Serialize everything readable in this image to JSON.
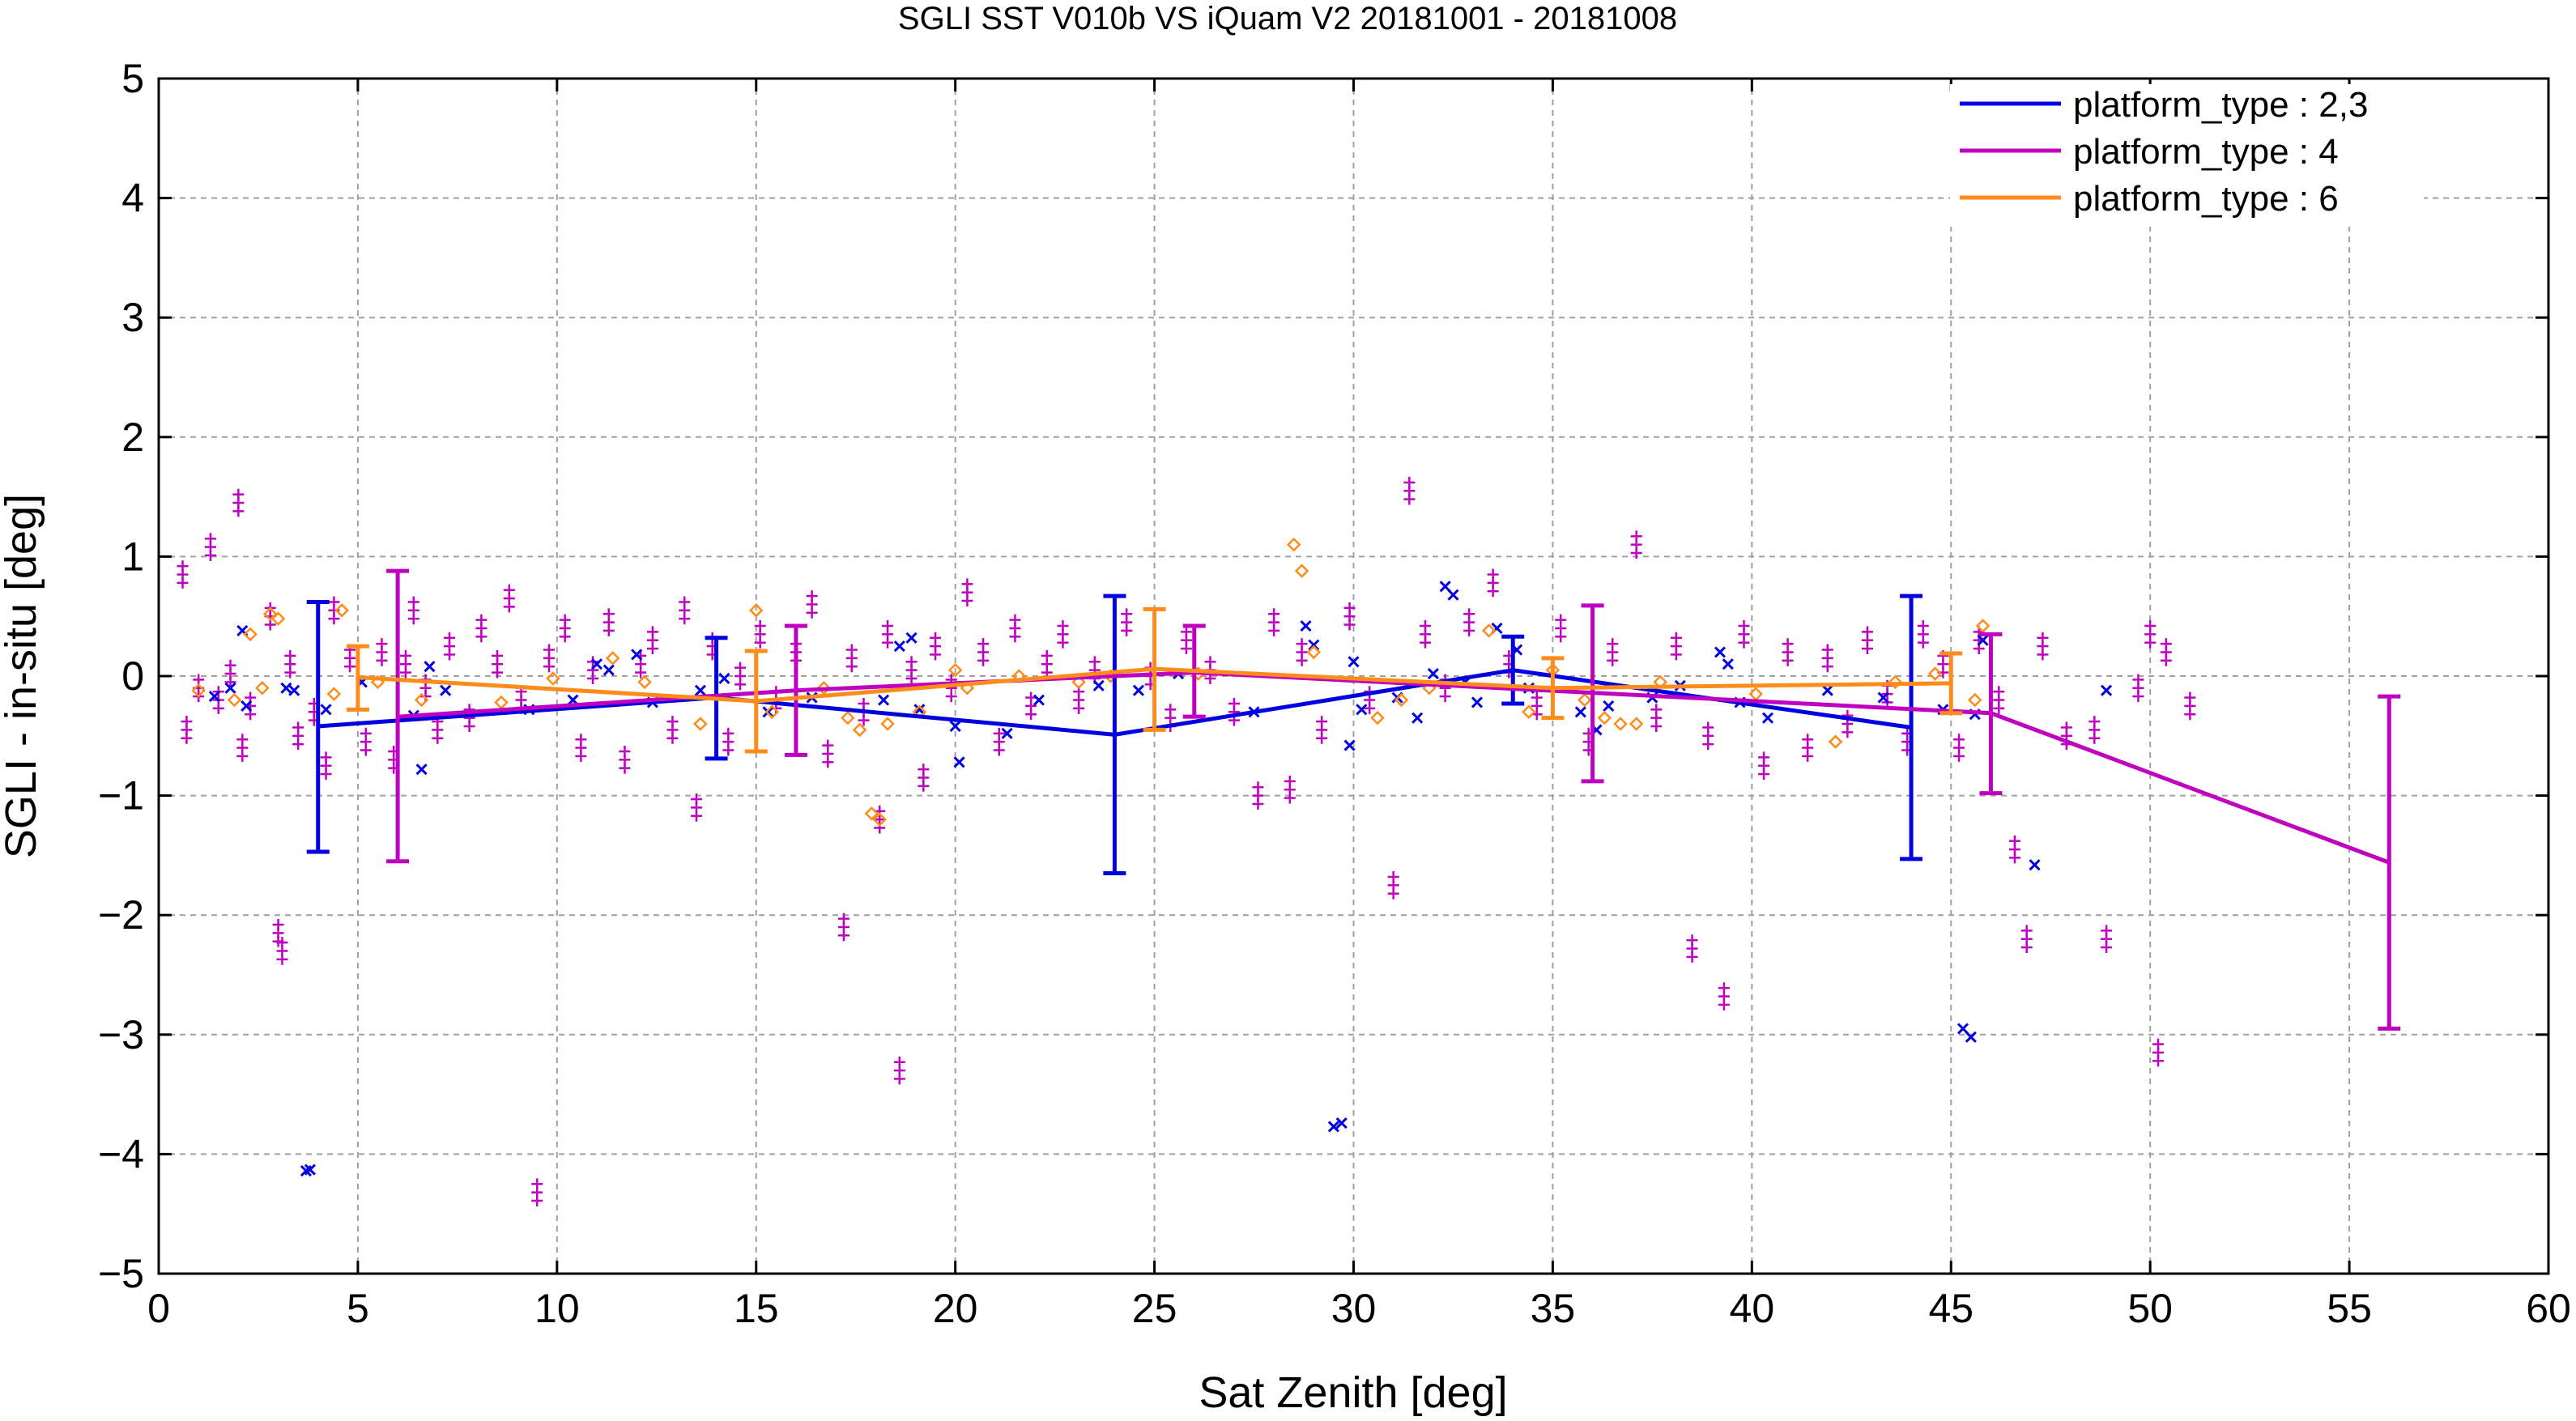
{
  "chart_data": {
    "type": "line",
    "title": "SGLI SST V010b VS iQuam V2 20181001 - 20181008",
    "xlabel": "Sat Zenith [deg]",
    "ylabel": "SGLI - in-situ [deg]",
    "xlim": [
      0,
      60
    ],
    "ylim": [
      -5,
      5
    ],
    "xticks": [
      0,
      5,
      10,
      15,
      20,
      25,
      30,
      35,
      40,
      45,
      50,
      55,
      60
    ],
    "yticks": [
      -5,
      -4,
      -3,
      -2,
      -1,
      0,
      1,
      2,
      3,
      4,
      5
    ],
    "grid": true,
    "legend_position": "top-right",
    "series": [
      {
        "name": "platform_type : 2,3",
        "color": "#0000e0",
        "marker": "x",
        "x": [
          4,
          14,
          24,
          34,
          44
        ],
        "mean": [
          -0.42,
          -0.18,
          -0.49,
          0.05,
          -0.43
        ],
        "err_low": [
          -1.47,
          -0.69,
          -1.65,
          -0.23,
          -1.53
        ],
        "err_high": [
          0.62,
          0.32,
          0.67,
          0.33,
          0.67
        ]
      },
      {
        "name": "platform_type : 4",
        "color": "#c000c0",
        "marker": "+",
        "x": [
          6,
          16,
          26,
          36,
          46,
          56
        ],
        "mean": [
          -0.34,
          -0.12,
          0.03,
          -0.14,
          -0.31,
          -1.56
        ],
        "err_low": [
          -1.55,
          -0.66,
          -0.34,
          -0.88,
          -0.98,
          -2.95
        ],
        "err_high": [
          0.88,
          0.42,
          0.42,
          0.59,
          0.35,
          -0.17
        ]
      },
      {
        "name": "platform_type : 6",
        "color": "#ff8c1a",
        "marker": "diamond",
        "x": [
          5,
          15,
          25,
          35,
          45
        ],
        "mean": [
          -0.01,
          -0.21,
          0.06,
          -0.1,
          -0.06
        ],
        "err_low": [
          -0.28,
          -0.63,
          -0.45,
          -0.35,
          -0.31
        ],
        "err_high": [
          0.25,
          0.21,
          0.56,
          0.15,
          0.19
        ]
      }
    ],
    "scatter": {
      "platform_type_2_3": [
        [
          1.4,
          -0.17
        ],
        [
          1.8,
          -0.1
        ],
        [
          2.1,
          0.38
        ],
        [
          2.2,
          -0.25
        ],
        [
          3.2,
          -0.1
        ],
        [
          3.4,
          -0.12
        ],
        [
          3.7,
          -4.14
        ],
        [
          3.8,
          -4.13
        ],
        [
          4.2,
          -0.28
        ],
        [
          5.1,
          -0.05
        ],
        [
          6.4,
          -0.33
        ],
        [
          6.6,
          -0.78
        ],
        [
          6.8,
          0.08
        ],
        [
          7.2,
          -0.12
        ],
        [
          9.3,
          -0.28
        ],
        [
          10.4,
          -0.2
        ],
        [
          11.0,
          0.1
        ],
        [
          11.3,
          0.05
        ],
        [
          12.0,
          0.18
        ],
        [
          12.4,
          -0.22
        ],
        [
          13.6,
          -0.12
        ],
        [
          14.2,
          -0.02
        ],
        [
          15.3,
          -0.3
        ],
        [
          16.4,
          -0.18
        ],
        [
          18.2,
          -0.2
        ],
        [
          18.6,
          0.25
        ],
        [
          18.9,
          0.32
        ],
        [
          19.1,
          -0.28
        ],
        [
          20.0,
          -0.42
        ],
        [
          20.1,
          -0.72
        ],
        [
          21.3,
          -0.48
        ],
        [
          22.1,
          -0.2
        ],
        [
          23.6,
          -0.08
        ],
        [
          24.6,
          -0.12
        ],
        [
          25.6,
          0.02
        ],
        [
          27.5,
          -0.3
        ],
        [
          28.8,
          0.42
        ],
        [
          29.0,
          0.26
        ],
        [
          29.5,
          -3.77
        ],
        [
          29.7,
          -3.74
        ],
        [
          29.9,
          -0.58
        ],
        [
          30.0,
          0.12
        ],
        [
          30.2,
          -0.28
        ],
        [
          31.1,
          -0.18
        ],
        [
          31.6,
          -0.35
        ],
        [
          32.0,
          0.02
        ],
        [
          32.3,
          0.75
        ],
        [
          32.5,
          0.68
        ],
        [
          32.8,
          -0.05
        ],
        [
          33.1,
          -0.22
        ],
        [
          33.6,
          0.4
        ],
        [
          34.1,
          0.22
        ],
        [
          34.4,
          -0.1
        ],
        [
          35.7,
          -0.3
        ],
        [
          36.1,
          -0.45
        ],
        [
          36.4,
          -0.25
        ],
        [
          37.5,
          -0.18
        ],
        [
          38.2,
          -0.08
        ],
        [
          39.2,
          0.2
        ],
        [
          39.4,
          0.1
        ],
        [
          39.7,
          -0.22
        ],
        [
          40.4,
          -0.35
        ],
        [
          41.9,
          -0.12
        ],
        [
          43.3,
          -0.18
        ],
        [
          44.8,
          -0.28
        ],
        [
          45.3,
          -2.95
        ],
        [
          45.5,
          -3.02
        ],
        [
          45.6,
          -0.32
        ],
        [
          45.8,
          0.3
        ],
        [
          47.1,
          -1.58
        ],
        [
          48.9,
          -0.12
        ]
      ],
      "platform_type_4": [
        [
          0.6,
          0.85
        ],
        [
          0.7,
          -0.45
        ],
        [
          1.0,
          -0.1
        ],
        [
          1.3,
          1.08
        ],
        [
          1.5,
          -0.2
        ],
        [
          1.8,
          0.02
        ],
        [
          2.0,
          1.45
        ],
        [
          2.1,
          -0.6
        ],
        [
          2.3,
          -0.25
        ],
        [
          2.8,
          0.5
        ],
        [
          3.0,
          -2.15
        ],
        [
          3.1,
          -2.3
        ],
        [
          3.3,
          0.1
        ],
        [
          3.5,
          -0.5
        ],
        [
          3.9,
          -0.3
        ],
        [
          4.2,
          -0.75
        ],
        [
          4.4,
          0.55
        ],
        [
          4.8,
          0.15
        ],
        [
          5.2,
          -0.55
        ],
        [
          5.6,
          0.2
        ],
        [
          5.9,
          -0.7
        ],
        [
          6.2,
          0.1
        ],
        [
          6.4,
          0.55
        ],
        [
          6.7,
          -0.1
        ],
        [
          7.0,
          -0.45
        ],
        [
          7.3,
          0.25
        ],
        [
          7.8,
          -0.35
        ],
        [
          8.1,
          0.4
        ],
        [
          8.5,
          0.1
        ],
        [
          8.8,
          0.65
        ],
        [
          9.1,
          -0.2
        ],
        [
          9.5,
          -4.32
        ],
        [
          9.8,
          0.15
        ],
        [
          10.2,
          0.4
        ],
        [
          10.6,
          -0.6
        ],
        [
          10.9,
          0.05
        ],
        [
          11.3,
          0.45
        ],
        [
          11.7,
          -0.7
        ],
        [
          12.1,
          0.1
        ],
        [
          12.4,
          0.3
        ],
        [
          12.9,
          -0.45
        ],
        [
          13.2,
          0.55
        ],
        [
          13.5,
          -1.1
        ],
        [
          13.9,
          0.25
        ],
        [
          14.3,
          -0.55
        ],
        [
          14.6,
          0.0
        ],
        [
          15.1,
          0.35
        ],
        [
          15.5,
          -0.2
        ],
        [
          16.0,
          0.2
        ],
        [
          16.4,
          0.6
        ],
        [
          16.8,
          -0.65
        ],
        [
          17.2,
          -2.1
        ],
        [
          17.4,
          0.15
        ],
        [
          17.7,
          -0.3
        ],
        [
          18.1,
          -1.2
        ],
        [
          18.3,
          0.35
        ],
        [
          18.6,
          -3.3
        ],
        [
          18.9,
          0.05
        ],
        [
          19.2,
          -0.85
        ],
        [
          19.5,
          0.25
        ],
        [
          19.9,
          -0.1
        ],
        [
          20.3,
          0.7
        ],
        [
          20.7,
          0.2
        ],
        [
          21.1,
          -0.55
        ],
        [
          21.5,
          0.4
        ],
        [
          21.9,
          -0.25
        ],
        [
          22.3,
          0.1
        ],
        [
          22.7,
          0.35
        ],
        [
          23.1,
          -0.2
        ],
        [
          23.5,
          0.05
        ],
        [
          24.3,
          0.45
        ],
        [
          24.9,
          0.0
        ],
        [
          25.4,
          -0.35
        ],
        [
          25.8,
          0.3
        ],
        [
          26.4,
          0.05
        ],
        [
          27.0,
          -0.3
        ],
        [
          27.6,
          -1.0
        ],
        [
          28.0,
          0.45
        ],
        [
          28.4,
          -0.95
        ],
        [
          28.7,
          0.2
        ],
        [
          29.2,
          -0.45
        ],
        [
          29.9,
          0.5
        ],
        [
          30.4,
          -0.2
        ],
        [
          31.0,
          -1.75
        ],
        [
          31.4,
          1.55
        ],
        [
          31.8,
          0.35
        ],
        [
          32.3,
          -0.1
        ],
        [
          32.9,
          0.45
        ],
        [
          33.5,
          0.78
        ],
        [
          33.9,
          0.1
        ],
        [
          34.6,
          -0.25
        ],
        [
          35.2,
          0.4
        ],
        [
          35.9,
          -0.55
        ],
        [
          36.5,
          0.2
        ],
        [
          37.1,
          1.1
        ],
        [
          37.6,
          -0.35
        ],
        [
          38.1,
          0.25
        ],
        [
          38.5,
          -2.28
        ],
        [
          38.9,
          -0.5
        ],
        [
          39.3,
          -2.68
        ],
        [
          39.8,
          0.35
        ],
        [
          40.3,
          -0.75
        ],
        [
          40.9,
          0.2
        ],
        [
          41.4,
          -0.6
        ],
        [
          41.9,
          0.15
        ],
        [
          42.4,
          -0.4
        ],
        [
          42.9,
          0.3
        ],
        [
          43.4,
          -0.15
        ],
        [
          43.9,
          -0.55
        ],
        [
          44.3,
          0.35
        ],
        [
          44.8,
          0.1
        ],
        [
          45.2,
          -0.6
        ],
        [
          45.7,
          0.3
        ],
        [
          46.2,
          -0.2
        ],
        [
          46.6,
          -1.45
        ],
        [
          46.9,
          -2.2
        ],
        [
          47.3,
          0.25
        ],
        [
          47.9,
          -0.5
        ],
        [
          48.6,
          -0.45
        ],
        [
          48.9,
          -2.2
        ],
        [
          49.7,
          -0.1
        ],
        [
          50.0,
          0.35
        ],
        [
          50.2,
          -3.15
        ],
        [
          50.4,
          0.2
        ],
        [
          51.0,
          -0.25
        ]
      ],
      "platform_type_6": [
        [
          1.0,
          -0.12
        ],
        [
          1.9,
          -0.2
        ],
        [
          2.3,
          0.35
        ],
        [
          2.6,
          -0.1
        ],
        [
          2.8,
          0.52
        ],
        [
          3.0,
          0.48
        ],
        [
          4.4,
          -0.15
        ],
        [
          4.6,
          0.55
        ],
        [
          5.5,
          -0.05
        ],
        [
          6.6,
          -0.2
        ],
        [
          8.6,
          -0.22
        ],
        [
          9.9,
          -0.02
        ],
        [
          11.4,
          0.15
        ],
        [
          12.2,
          -0.05
        ],
        [
          13.6,
          -0.4
        ],
        [
          15.0,
          0.55
        ],
        [
          15.4,
          -0.3
        ],
        [
          16.7,
          -0.1
        ],
        [
          17.3,
          -0.35
        ],
        [
          17.6,
          -0.45
        ],
        [
          17.9,
          -1.15
        ],
        [
          18.1,
          -1.2
        ],
        [
          18.3,
          -0.4
        ],
        [
          19.1,
          -0.3
        ],
        [
          20.0,
          0.05
        ],
        [
          20.3,
          -0.1
        ],
        [
          21.6,
          0.0
        ],
        [
          23.1,
          -0.05
        ],
        [
          23.9,
          0.0
        ],
        [
          26.1,
          0.02
        ],
        [
          28.5,
          1.1
        ],
        [
          28.7,
          0.88
        ],
        [
          29.0,
          0.2
        ],
        [
          30.6,
          -0.35
        ],
        [
          31.2,
          -0.2
        ],
        [
          31.9,
          -0.1
        ],
        [
          33.4,
          0.38
        ],
        [
          34.4,
          -0.3
        ],
        [
          35.0,
          0.05
        ],
        [
          35.8,
          -0.2
        ],
        [
          36.3,
          -0.35
        ],
        [
          36.7,
          -0.4
        ],
        [
          37.1,
          -0.4
        ],
        [
          37.7,
          -0.05
        ],
        [
          40.1,
          -0.15
        ],
        [
          42.1,
          -0.55
        ],
        [
          43.6,
          -0.05
        ],
        [
          44.6,
          0.02
        ],
        [
          45.6,
          -0.2
        ],
        [
          45.8,
          0.42
        ]
      ]
    }
  }
}
